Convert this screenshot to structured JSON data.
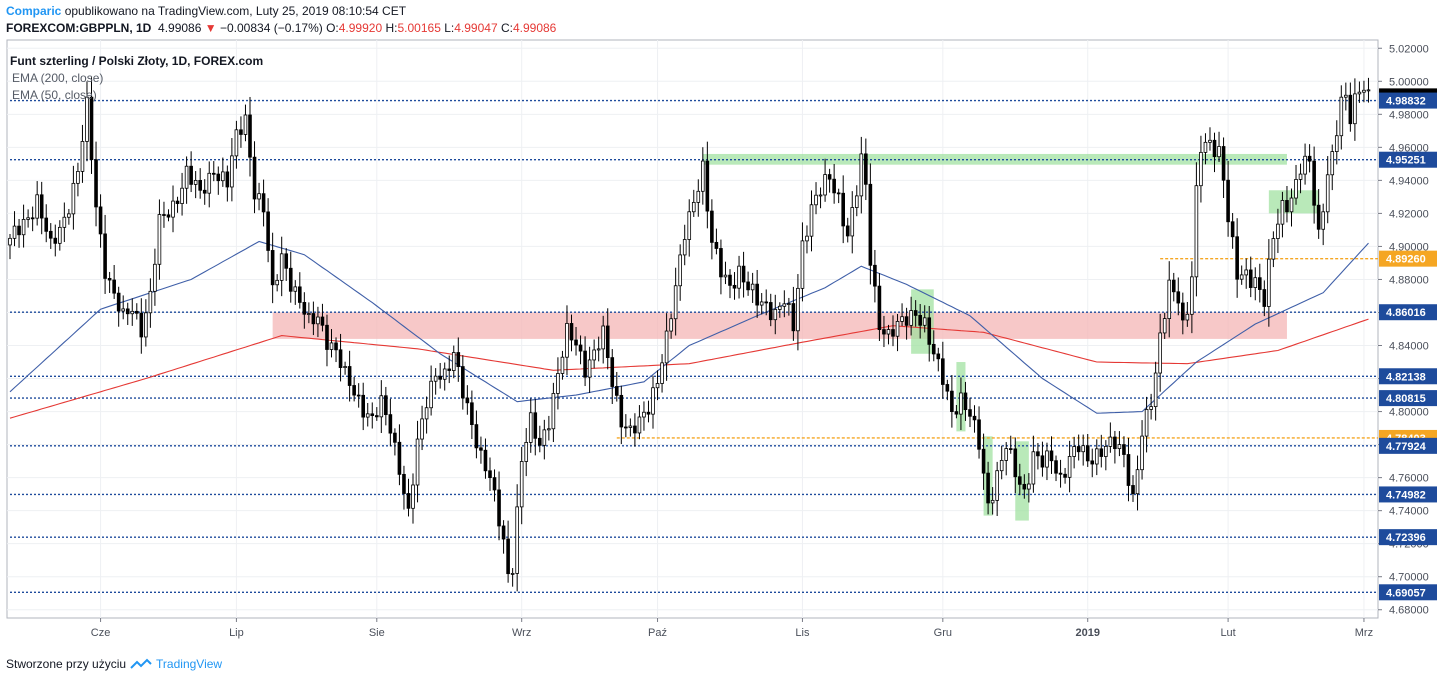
{
  "header": {
    "brand": "Comparic",
    "published": "opublikowano na TradingView.com, Luty 25, 2019 08:10:54 CET",
    "symbol": "FOREXCOM:GBPPLN, 1D",
    "last": "4.99086",
    "change": "−0.00834 (−0.17%)",
    "o_label": "O:",
    "o": "4.99920",
    "h_label": "H:",
    "h": "5.00165",
    "l_label": "L:",
    "l": "4.99047",
    "c_label": "C:",
    "c": "4.99086"
  },
  "legend": {
    "title": "Funt szterling / Polski Złoty, 1D, FOREX.com",
    "ema200": "EMA (200, close)",
    "ema50": "EMA (50, close)"
  },
  "footer": {
    "made_with": "Stworzone przy użyciu",
    "brand": "TradingView",
    "logo_icon": "tradingview-cloud-icon"
  },
  "colors": {
    "up_candle": "#ffffff",
    "down_candle": "#000000",
    "ema200": "#e53935",
    "ema50": "#3f5fa8",
    "level_line": "#1e4b9c",
    "orange_level": "#f5a623",
    "pink_zone": "#f4b6b6",
    "green_zone": "#9be09b"
  },
  "chart_data": {
    "type": "candlestick",
    "ylim": [
      4.675,
      5.025
    ],
    "y_ticks": [
      "5.02000",
      "5.00000",
      "4.98000",
      "4.96000",
      "4.94000",
      "4.92000",
      "4.90000",
      "4.88000",
      "4.86000",
      "4.84000",
      "4.82000",
      "4.80000",
      "4.78000",
      "4.76000",
      "4.74000",
      "4.72000",
      "4.70000",
      "4.68000"
    ],
    "x_ticks": [
      {
        "label": "Cze",
        "index": 20,
        "bold": false
      },
      {
        "label": "Lip",
        "index": 50,
        "bold": false
      },
      {
        "label": "Sie",
        "index": 81,
        "bold": false
      },
      {
        "label": "Wrz",
        "index": 113,
        "bold": false
      },
      {
        "label": "Paź",
        "index": 143,
        "bold": false
      },
      {
        "label": "Lis",
        "index": 175,
        "bold": false
      },
      {
        "label": "Gru",
        "index": 206,
        "bold": false
      },
      {
        "label": "2019",
        "index": 238,
        "bold": true
      },
      {
        "label": "Lut",
        "index": 269,
        "bold": false
      },
      {
        "label": "Mrz",
        "index": 299,
        "bold": false
      }
    ],
    "levels": [
      {
        "price": 4.99086,
        "label": "4.99086",
        "style": "last"
      },
      {
        "price": 4.98832,
        "label": "4.98832",
        "style": "dotted",
        "from_index": 0
      },
      {
        "price": 4.95251,
        "label": "4.95251",
        "style": "dotted",
        "from_index": 0
      },
      {
        "price": 4.8926,
        "label": "4.89260",
        "style": "orange",
        "from_index": 254
      },
      {
        "price": 4.86016,
        "label": "4.86016",
        "style": "dotted",
        "from_index": 0
      },
      {
        "price": 4.82138,
        "label": "4.82138",
        "style": "dotted",
        "from_index": 0
      },
      {
        "price": 4.80815,
        "label": "4.80815",
        "style": "dotted",
        "from_index": 0
      },
      {
        "price": 4.78403,
        "label": "4.78403",
        "style": "orange",
        "from_index": 134
      },
      {
        "price": 4.77924,
        "label": "4.77924",
        "style": "dotted",
        "from_index": 0
      },
      {
        "price": 4.74982,
        "label": "4.74982",
        "style": "dotted",
        "from_index": 0
      },
      {
        "price": 4.72396,
        "label": "4.72396",
        "style": "dotted",
        "from_index": 0
      },
      {
        "price": 4.69057,
        "label": "4.69057",
        "style": "dotted",
        "from_index": 0
      }
    ],
    "zones": [
      {
        "type": "pink",
        "from_index": 58,
        "to_index": 282,
        "top": 4.86,
        "bottom": 4.844
      },
      {
        "type": "green",
        "from_index": 153,
        "to_index": 282,
        "top": 4.956,
        "bottom": 4.9495
      },
      {
        "type": "green",
        "from_index": 199,
        "to_index": 204,
        "top": 4.874,
        "bottom": 4.835
      },
      {
        "type": "green",
        "from_index": 209,
        "to_index": 211,
        "top": 4.83,
        "bottom": 4.788
      },
      {
        "type": "green",
        "from_index": 215,
        "to_index": 217,
        "top": 4.785,
        "bottom": 4.737
      },
      {
        "type": "green",
        "from_index": 222,
        "to_index": 225,
        "top": 4.782,
        "bottom": 4.734
      },
      {
        "type": "green",
        "from_index": 278,
        "to_index": 289,
        "top": 4.934,
        "bottom": 4.92
      }
    ],
    "anchors": [
      [
        0,
        4.902
      ],
      [
        3,
        4.915
      ],
      [
        6,
        4.928
      ],
      [
        9,
        4.898
      ],
      [
        12,
        4.918
      ],
      [
        15,
        4.945
      ],
      [
        17,
        4.983
      ],
      [
        19,
        4.925
      ],
      [
        21,
        4.888
      ],
      [
        23,
        4.87
      ],
      [
        25,
        4.855
      ],
      [
        27,
        4.863
      ],
      [
        29,
        4.852
      ],
      [
        31,
        4.87
      ],
      [
        33,
        4.913
      ],
      [
        36,
        4.925
      ],
      [
        39,
        4.945
      ],
      [
        42,
        4.93
      ],
      [
        45,
        4.948
      ],
      [
        48,
        4.938
      ],
      [
        50,
        4.965
      ],
      [
        52,
        4.978
      ],
      [
        54,
        4.935
      ],
      [
        56,
        4.922
      ],
      [
        58,
        4.87
      ],
      [
        60,
        4.895
      ],
      [
        62,
        4.88
      ],
      [
        64,
        4.866
      ],
      [
        66,
        4.852
      ],
      [
        68,
        4.858
      ],
      [
        70,
        4.845
      ],
      [
        72,
        4.836
      ],
      [
        74,
        4.82
      ],
      [
        77,
        4.808
      ],
      [
        80,
        4.795
      ],
      [
        82,
        4.803
      ],
      [
        84,
        4.79
      ],
      [
        86,
        4.768
      ],
      [
        88,
        4.738
      ],
      [
        90,
        4.778
      ],
      [
        92,
        4.806
      ],
      [
        94,
        4.826
      ],
      [
        96,
        4.822
      ],
      [
        98,
        4.832
      ],
      [
        100,
        4.812
      ],
      [
        102,
        4.795
      ],
      [
        104,
        4.773
      ],
      [
        106,
        4.758
      ],
      [
        108,
        4.734
      ],
      [
        109,
        4.722
      ],
      [
        110,
        4.703
      ],
      [
        111,
        4.709
      ],
      [
        113,
        4.77
      ],
      [
        115,
        4.792
      ],
      [
        117,
        4.78
      ],
      [
        119,
        4.797
      ],
      [
        121,
        4.822
      ],
      [
        123,
        4.846
      ],
      [
        125,
        4.842
      ],
      [
        127,
        4.828
      ],
      [
        129,
        4.835
      ],
      [
        131,
        4.845
      ],
      [
        133,
        4.818
      ],
      [
        135,
        4.797
      ],
      [
        137,
        4.788
      ],
      [
        139,
        4.791
      ],
      [
        141,
        4.802
      ],
      [
        143,
        4.822
      ],
      [
        145,
        4.845
      ],
      [
        147,
        4.872
      ],
      [
        149,
        4.908
      ],
      [
        151,
        4.93
      ],
      [
        153,
        4.948
      ],
      [
        154,
        4.923
      ],
      [
        155,
        4.9
      ],
      [
        157,
        4.885
      ],
      [
        159,
        4.878
      ],
      [
        161,
        4.885
      ],
      [
        163,
        4.873
      ],
      [
        165,
        4.867
      ],
      [
        167,
        4.866
      ],
      [
        169,
        4.86
      ],
      [
        171,
        4.866
      ],
      [
        173,
        4.85
      ],
      [
        175,
        4.902
      ],
      [
        177,
        4.925
      ],
      [
        179,
        4.933
      ],
      [
        181,
        4.94
      ],
      [
        183,
        4.93
      ],
      [
        185,
        4.908
      ],
      [
        187,
        4.933
      ],
      [
        188,
        4.95
      ],
      [
        189,
        4.935
      ],
      [
        190,
        4.892
      ],
      [
        192,
        4.855
      ],
      [
        194,
        4.846
      ],
      [
        196,
        4.85
      ],
      [
        198,
        4.856
      ],
      [
        200,
        4.862
      ],
      [
        202,
        4.853
      ],
      [
        204,
        4.832
      ],
      [
        206,
        4.82
      ],
      [
        208,
        4.802
      ],
      [
        210,
        4.808
      ],
      [
        212,
        4.796
      ],
      [
        214,
        4.78
      ],
      [
        216,
        4.745
      ],
      [
        218,
        4.762
      ],
      [
        220,
        4.778
      ],
      [
        222,
        4.762
      ],
      [
        224,
        4.752
      ],
      [
        226,
        4.775
      ],
      [
        228,
        4.768
      ],
      [
        230,
        4.77
      ],
      [
        232,
        4.76
      ],
      [
        234,
        4.774
      ],
      [
        236,
        4.778
      ],
      [
        238,
        4.768
      ],
      [
        240,
        4.775
      ],
      [
        242,
        4.782
      ],
      [
        244,
        4.78
      ],
      [
        246,
        4.77
      ],
      [
        248,
        4.748
      ],
      [
        250,
        4.79
      ],
      [
        252,
        4.805
      ],
      [
        253,
        4.82
      ],
      [
        254,
        4.842
      ],
      [
        256,
        4.878
      ],
      [
        258,
        4.872
      ],
      [
        259,
        4.852
      ],
      [
        260,
        4.86
      ],
      [
        261,
        4.88
      ],
      [
        262,
        4.93
      ],
      [
        263,
        4.96
      ],
      [
        265,
        4.965
      ],
      [
        267,
        4.958
      ],
      [
        268,
        4.94
      ],
      [
        269,
        4.915
      ],
      [
        271,
        4.882
      ],
      [
        273,
        4.885
      ],
      [
        275,
        4.88
      ],
      [
        277,
        4.865
      ],
      [
        279,
        4.905
      ],
      [
        281,
        4.926
      ],
      [
        283,
        4.93
      ],
      [
        285,
        4.946
      ],
      [
        287,
        4.95
      ],
      [
        288,
        4.928
      ],
      [
        289,
        4.908
      ],
      [
        291,
        4.946
      ],
      [
        292,
        4.954
      ],
      [
        294,
        4.985
      ],
      [
        295,
        4.988
      ],
      [
        296,
        4.978
      ],
      [
        297,
        4.99
      ],
      [
        298,
        4.998
      ],
      [
        299,
        4.999
      ],
      [
        300,
        4.991
      ]
    ],
    "series": [
      {
        "name": "EMA (200, close)",
        "points": [
          [
            0,
            4.796
          ],
          [
            30,
            4.82
          ],
          [
            60,
            4.846
          ],
          [
            90,
            4.838
          ],
          [
            120,
            4.825
          ],
          [
            150,
            4.829
          ],
          [
            175,
            4.842
          ],
          [
            195,
            4.852
          ],
          [
            215,
            4.848
          ],
          [
            240,
            4.83
          ],
          [
            260,
            4.829
          ],
          [
            280,
            4.837
          ],
          [
            300,
            4.856
          ]
        ]
      },
      {
        "name": "EMA (50, close)",
        "points": [
          [
            0,
            4.812
          ],
          [
            20,
            4.862
          ],
          [
            40,
            4.88
          ],
          [
            55,
            4.903
          ],
          [
            65,
            4.895
          ],
          [
            80,
            4.866
          ],
          [
            95,
            4.835
          ],
          [
            112,
            4.806
          ],
          [
            125,
            4.81
          ],
          [
            140,
            4.818
          ],
          [
            150,
            4.84
          ],
          [
            165,
            4.858
          ],
          [
            180,
            4.875
          ],
          [
            188,
            4.888
          ],
          [
            198,
            4.877
          ],
          [
            212,
            4.858
          ],
          [
            228,
            4.82
          ],
          [
            240,
            4.799
          ],
          [
            250,
            4.8
          ],
          [
            262,
            4.83
          ],
          [
            275,
            4.853
          ],
          [
            290,
            4.872
          ],
          [
            300,
            4.902
          ]
        ]
      }
    ]
  }
}
